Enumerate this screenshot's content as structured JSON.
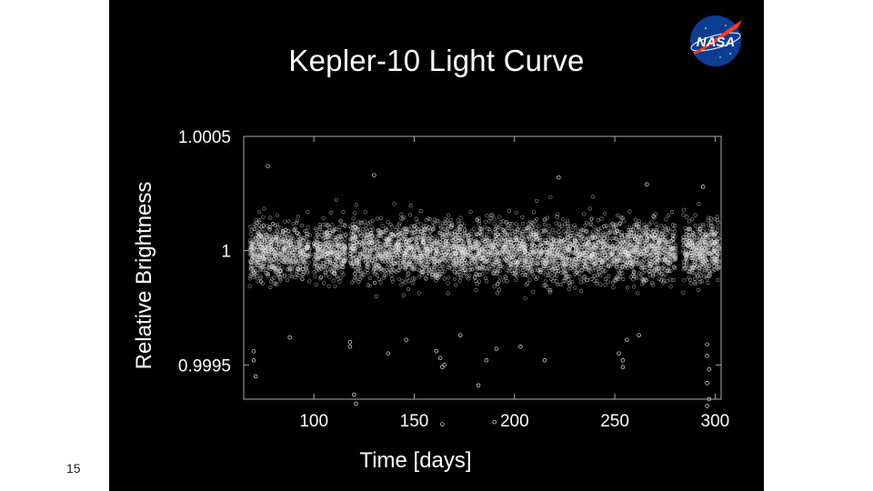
{
  "slide": {
    "title": "Kepler-10 Light Curve",
    "page_number": "15"
  },
  "logo": {
    "text": "NASA",
    "icon": "nasa-meatball-logo",
    "colors": {
      "blue": "#0b3d91",
      "red": "#fc3d21"
    }
  },
  "colors": {
    "background": "#000000",
    "page": "#ffffff",
    "points": "#e6e6e6",
    "axis": "#aaaaaa"
  },
  "chart_data": {
    "type": "scatter",
    "title": "Kepler-10 Light Curve",
    "xlabel": "Time [days]",
    "ylabel": "Relative Brightness",
    "xlim": [
      65,
      303
    ],
    "ylim": [
      0.99935,
      1.0005
    ],
    "x_ticks": [
      100,
      150,
      200,
      250,
      300
    ],
    "x_tick_labels": [
      "100",
      "150",
      "200",
      "250",
      "300"
    ],
    "y_ticks": [
      0.9995,
      1,
      1.0005
    ],
    "y_tick_labels": [
      "0.9995",
      "1",
      "1.0005"
    ],
    "grid": false,
    "marker": "open circle",
    "series": [
      {
        "segments": [
          [
            68,
            98
          ],
          [
            100,
            116
          ],
          [
            118,
            302
          ]
        ],
        "data_gaps": [
          [
            98,
            100
          ],
          [
            116,
            118
          ],
          [
            280.5,
            284
          ]
        ],
        "typical_level": 1.0,
        "typical_spread": 0.00014,
        "outliers": [
          [
            70,
            0.99956
          ],
          [
            70,
            0.99952
          ],
          [
            71,
            0.99945
          ],
          [
            77,
            1.00037
          ],
          [
            88,
            0.99962
          ],
          [
            118,
            0.99958
          ],
          [
            118,
            0.9996
          ],
          [
            120,
            0.99937
          ],
          [
            121,
            0.99933
          ],
          [
            130,
            1.00033
          ],
          [
            137,
            0.99955
          ],
          [
            146,
            0.99961
          ],
          [
            161,
            0.99956
          ],
          [
            163,
            0.99953
          ],
          [
            164,
            0.99949
          ],
          [
            164,
            0.99924
          ],
          [
            165,
            0.9995
          ],
          [
            173,
            0.99963
          ],
          [
            182,
            0.99941
          ],
          [
            186,
            0.99952
          ],
          [
            190,
            0.99925
          ],
          [
            191,
            0.99957
          ],
          [
            203,
            0.99958
          ],
          [
            215,
            0.99952
          ],
          [
            222,
            1.00032
          ],
          [
            252,
            0.99955
          ],
          [
            254,
            0.99949
          ],
          [
            254,
            0.99952
          ],
          [
            256,
            0.99961
          ],
          [
            262,
            0.99963
          ],
          [
            266,
            1.00029
          ],
          [
            294,
            1.00028
          ],
          [
            296,
            0.99959
          ],
          [
            296,
            0.99954
          ],
          [
            297,
            0.99948
          ],
          [
            296,
            0.99942
          ],
          [
            297,
            0.99935
          ],
          [
            296,
            0.99932
          ]
        ]
      }
    ]
  }
}
